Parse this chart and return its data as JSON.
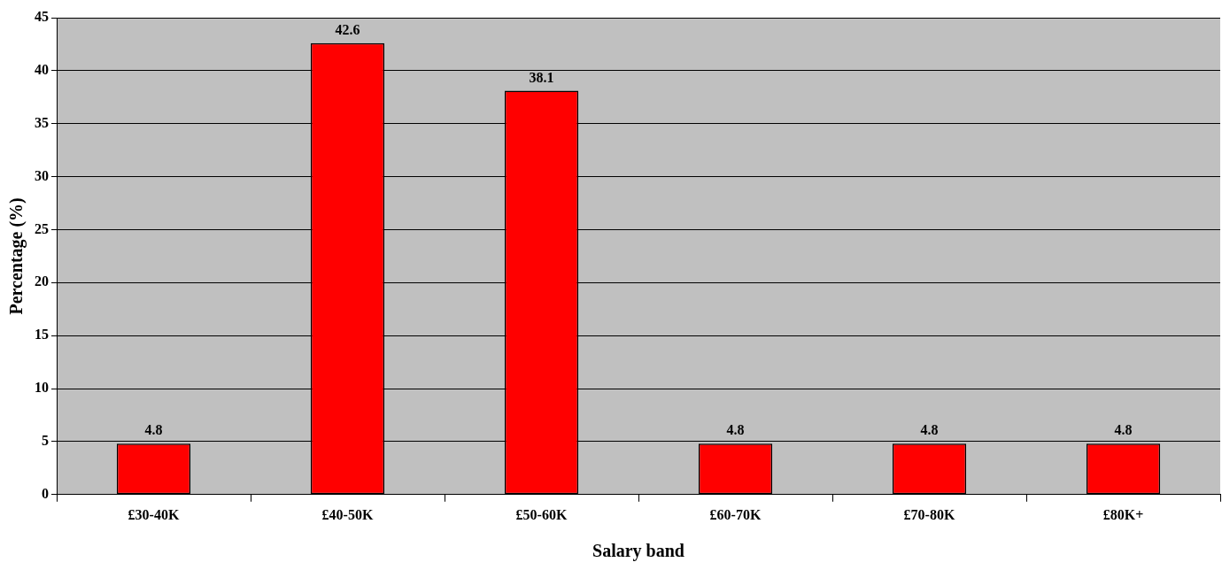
{
  "chart_data": {
    "type": "bar",
    "xlabel": "Salary band",
    "ylabel": "Percentage (%)",
    "categories": [
      "£30-40K",
      "£40-50K",
      "£50-60K",
      "£60-70K",
      "£70-80K",
      "£80K+"
    ],
    "values": [
      4.8,
      42.6,
      38.1,
      4.8,
      4.8,
      4.8
    ],
    "color": "#ff0000",
    "ylim": [
      0,
      45
    ],
    "yticks": [
      0,
      5,
      10,
      15,
      20,
      25,
      30,
      35,
      40,
      45
    ],
    "grid": "y",
    "legend": false,
    "data_labels": true
  }
}
